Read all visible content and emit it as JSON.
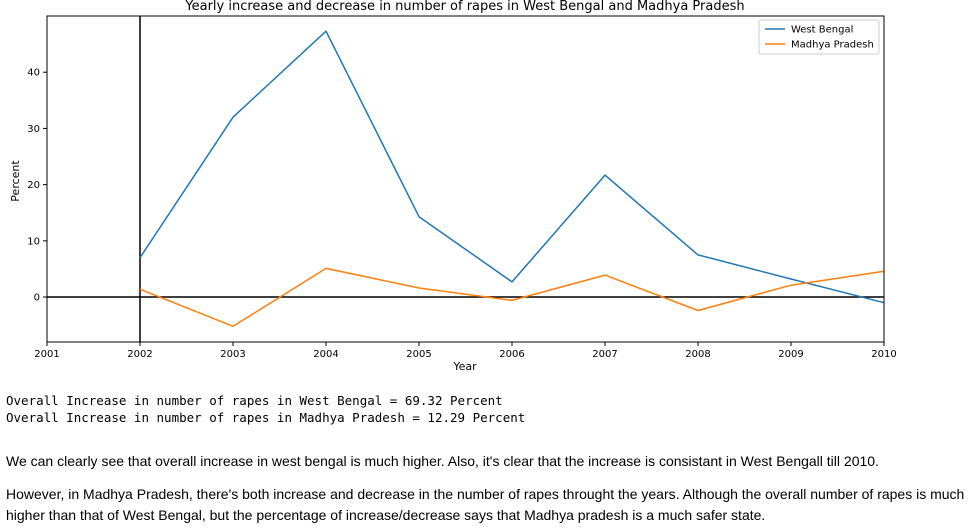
{
  "chart_data": {
    "type": "line",
    "title": "Yearly increase and decrease in number of rapes in West Bengal and Madhya Pradesh",
    "xlabel": "Year",
    "ylabel": "Percent",
    "xlim": [
      2001,
      2010
    ],
    "ylim": [
      -8,
      50
    ],
    "xticks": [
      2001,
      2002,
      2003,
      2004,
      2005,
      2006,
      2007,
      2008,
      2009,
      2010
    ],
    "yticks": [
      0,
      10,
      20,
      30,
      40
    ],
    "grid": false,
    "legend_position": "top-right",
    "reference_lines": {
      "x": 2002,
      "y": 0
    },
    "x": [
      2002,
      2003,
      2004,
      2005,
      2006,
      2007,
      2008,
      2009,
      2010
    ],
    "series": [
      {
        "name": "West Bengal",
        "color": "#1f77b4",
        "values": [
          7.0,
          32.0,
          47.3,
          14.3,
          2.7,
          21.7,
          7.5,
          3.2,
          -1.0
        ]
      },
      {
        "name": "Madhya Pradesh",
        "color": "#ff7f0e",
        "values": [
          1.4,
          -5.2,
          5.1,
          1.6,
          -0.6,
          3.9,
          -2.4,
          2.1,
          4.6
        ]
      }
    ]
  },
  "output_lines": [
    "Overall Increase in number of rapes in West Bengal = 69.32 Percent",
    "Overall Increase in number of rapes in Madhya Pradesh = 12.29 Percent"
  ],
  "paragraphs": [
    "We can clearly see that overall increase in west bengal is much higher. Also, it's clear that the increase is consistant in West Bengall till 2010.",
    "However, in Madhya Pradesh, there's both increase and decrease in the number of rapes throught the years. Although the overall number of rapes is much higher than that of West Bengal, but the percentage of increase/decrease says that Madhya pradesh is a much safer state."
  ]
}
